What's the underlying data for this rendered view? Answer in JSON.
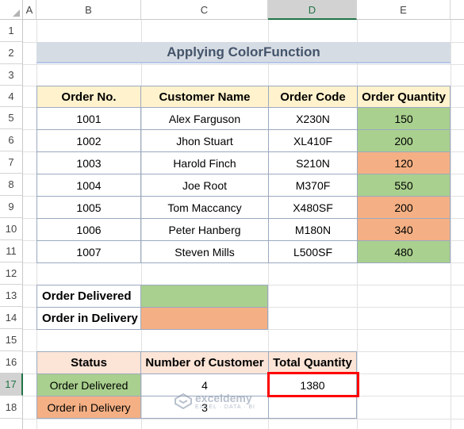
{
  "sheet": {
    "columns": [
      "A",
      "B",
      "C",
      "D",
      "E"
    ],
    "rows": [
      "1",
      "2",
      "3",
      "4",
      "5",
      "6",
      "7",
      "8",
      "9",
      "10",
      "11",
      "12",
      "13",
      "14",
      "15",
      "16",
      "17",
      "18"
    ],
    "title": "Applying ColorFunction",
    "main_headers": [
      "Order No.",
      "Customer Name",
      "Order Code",
      "Order Quantity"
    ],
    "orders": [
      {
        "no": "1001",
        "name": "Alex Farguson",
        "code": "X230N",
        "qty": "150",
        "status": "green"
      },
      {
        "no": "1002",
        "name": "Jhon Stuart",
        "code": "XL410F",
        "qty": "200",
        "status": "green"
      },
      {
        "no": "1003",
        "name": "Harold Finch",
        "code": "S210N",
        "qty": "120",
        "status": "orange"
      },
      {
        "no": "1004",
        "name": "Joe Root",
        "code": "M370F",
        "qty": "550",
        "status": "green"
      },
      {
        "no": "1005",
        "name": "Tom Maccancy",
        "code": "X480SF",
        "qty": "200",
        "status": "orange"
      },
      {
        "no": "1006",
        "name": "Peter Hanberg",
        "code": "M180N",
        "qty": "340",
        "status": "orange"
      },
      {
        "no": "1007",
        "name": "Steven Mills",
        "code": "L500SF",
        "qty": "480",
        "status": "green"
      }
    ],
    "legend": {
      "delivered": "Order Delivered",
      "in_delivery": "Order in Delivery"
    },
    "summary_headers": [
      "Status",
      "Number of Customer",
      "Total Quantity"
    ],
    "summary": [
      {
        "status": "Order Delivered",
        "count": "4",
        "total": "1380"
      },
      {
        "status": "Order in Delivery",
        "count": "3",
        "total": ""
      }
    ],
    "watermark": {
      "brand": "exceldemy",
      "tag": "EXCEL · DATA · BI"
    }
  },
  "colors": {
    "green": "#a9d08e",
    "orange": "#f4b084",
    "header": "#fff2cc",
    "summary_header": "#fce4d6",
    "title_bg": "#d6dce4",
    "selection": "#217346",
    "highlight": "#ff0000"
  },
  "selection": {
    "column": "D",
    "row": "17"
  }
}
